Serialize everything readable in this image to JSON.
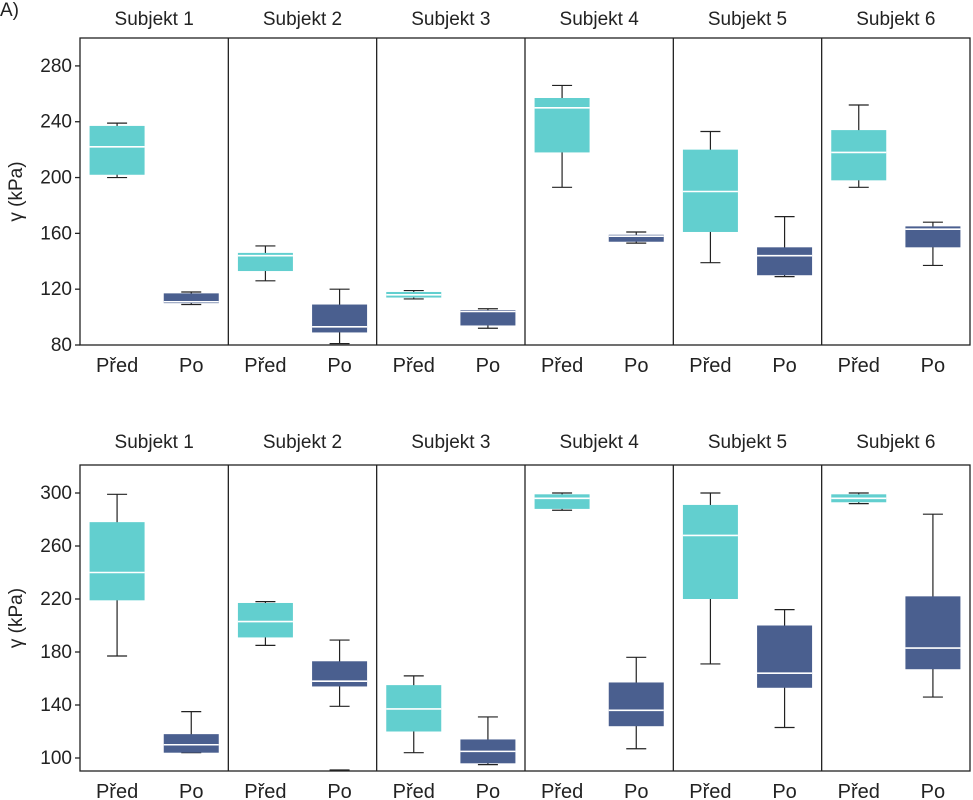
{
  "panel_label": "A)",
  "colors": {
    "pred": "#62cfcf",
    "po": "#4a5f8f",
    "median": "#ffffff",
    "frame": "#222222"
  },
  "chart_data": [
    {
      "type": "box",
      "ylabel": "γ (kPa)",
      "ylim": [
        80,
        300
      ],
      "yticks": [
        80,
        120,
        160,
        200,
        240,
        280
      ],
      "grid": false,
      "legend": "none",
      "category_labels": [
        "Před",
        "Po"
      ],
      "panels": [
        {
          "title": "Subjekt 1",
          "Před": {
            "whisker_low": 200,
            "q1": 202,
            "median": 222,
            "q3": 237,
            "whisker_high": 239
          },
          "Po": {
            "whisker_low": 109,
            "q1": 110,
            "median": 111,
            "q3": 117,
            "whisker_high": 118
          }
        },
        {
          "title": "Subjekt 2",
          "Před": {
            "whisker_low": 126,
            "q1": 133,
            "median": 144,
            "q3": 146,
            "whisker_high": 151
          },
          "Po": {
            "whisker_low": 81,
            "q1": 89,
            "median": 93,
            "q3": 109,
            "whisker_high": 120
          }
        },
        {
          "title": "Subjekt 3",
          "Před": {
            "whisker_low": 113,
            "q1": 114,
            "median": 116,
            "q3": 118,
            "whisker_high": 119
          },
          "Po": {
            "whisker_low": 92,
            "q1": 94,
            "median": 104,
            "q3": 105,
            "whisker_high": 106
          }
        },
        {
          "title": "Subjekt 4",
          "Před": {
            "whisker_low": 193,
            "q1": 218,
            "median": 250,
            "q3": 257,
            "whisker_high": 266
          },
          "Po": {
            "whisker_low": 153,
            "q1": 154,
            "median": 158,
            "q3": 159,
            "whisker_high": 161
          }
        },
        {
          "title": "Subjekt 5",
          "Před": {
            "whisker_low": 139,
            "q1": 161,
            "median": 190,
            "q3": 220,
            "whisker_high": 233
          },
          "Po": {
            "whisker_low": 129,
            "q1": 130,
            "median": 144,
            "q3": 150,
            "whisker_high": 172
          }
        },
        {
          "title": "Subjekt 6",
          "Před": {
            "whisker_low": 193,
            "q1": 198,
            "median": 218,
            "q3": 234,
            "whisker_high": 252
          },
          "Po": {
            "whisker_low": 137,
            "q1": 150,
            "median": 163,
            "q3": 165,
            "whisker_high": 168
          }
        }
      ]
    },
    {
      "type": "box",
      "ylabel": "γ (kPa)",
      "ylim": [
        91,
        320
      ],
      "yticks": [
        100,
        140,
        180,
        220,
        260,
        300
      ],
      "grid": false,
      "legend": "none",
      "category_labels": [
        "Před",
        "Po"
      ],
      "panels": [
        {
          "title": "Subjekt 1",
          "Před": {
            "whisker_low": 177,
            "q1": 219,
            "median": 240,
            "q3": 278,
            "whisker_high": 299
          },
          "Po": {
            "whisker_low": 104,
            "q1": 104,
            "median": 110,
            "q3": 118,
            "whisker_high": 135
          }
        },
        {
          "title": "Subjekt 2",
          "Před": {
            "whisker_low": 185,
            "q1": 191,
            "median": 203,
            "q3": 217,
            "whisker_high": 218
          },
          "Po": {
            "whisker_low": 139,
            "q1": 154,
            "median": 158,
            "q3": 173,
            "whisker_high": 189
          },
          "Po_outliers": [
            91
          ]
        },
        {
          "title": "Subjekt 3",
          "Před": {
            "whisker_low": 104,
            "q1": 120,
            "median": 137,
            "q3": 155,
            "whisker_high": 162
          },
          "Po": {
            "whisker_low": 95,
            "q1": 96,
            "median": 105,
            "q3": 114,
            "whisker_high": 131
          }
        },
        {
          "title": "Subjekt 4",
          "Před": {
            "whisker_low": 287,
            "q1": 288,
            "median": 296,
            "q3": 299,
            "whisker_high": 300
          },
          "Po": {
            "whisker_low": 107,
            "q1": 124,
            "median": 136,
            "q3": 157,
            "whisker_high": 176
          }
        },
        {
          "title": "Subjekt 5",
          "Před": {
            "whisker_low": 171,
            "q1": 220,
            "median": 268,
            "q3": 291,
            "whisker_high": 300
          },
          "Po": {
            "whisker_low": 123,
            "q1": 153,
            "median": 164,
            "q3": 200,
            "whisker_high": 212
          }
        },
        {
          "title": "Subjekt 6",
          "Před": {
            "whisker_low": 292,
            "q1": 293,
            "median": 296,
            "q3": 299,
            "whisker_high": 300
          },
          "Po": {
            "whisker_low": 146,
            "q1": 167,
            "median": 183,
            "q3": 222,
            "whisker_high": 284
          }
        }
      ]
    }
  ]
}
